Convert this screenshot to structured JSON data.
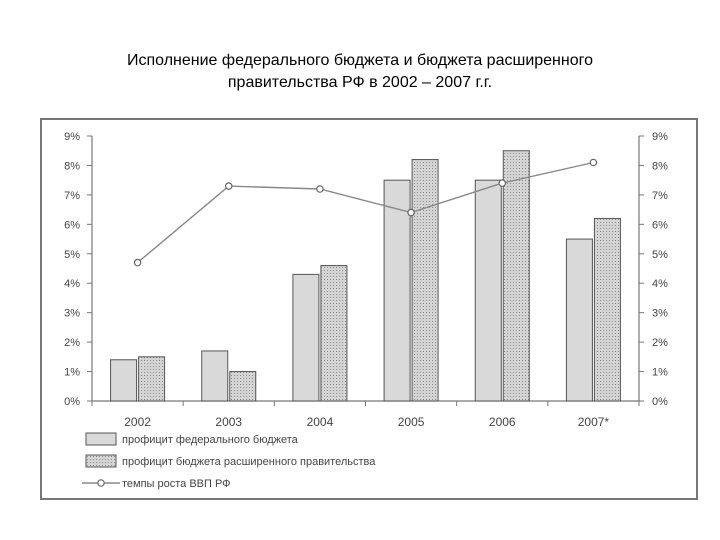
{
  "title": {
    "line1": "Исполнение федерального бюджета и бюджета расширенного",
    "line2": "правительства РФ в 2002 – 2007 г.г."
  },
  "chart_data": {
    "type": "bar",
    "categories": [
      "2002",
      "2003",
      "2004",
      "2005",
      "2006",
      "2007*"
    ],
    "series": [
      {
        "name": "профицит федерального бюджета",
        "type": "bar",
        "values": [
          1.4,
          1.7,
          4.3,
          7.5,
          7.5,
          5.5
        ]
      },
      {
        "name": "профицит бюджета расширенного правительства",
        "type": "bar",
        "values": [
          1.5,
          1.0,
          4.6,
          8.2,
          8.5,
          6.2
        ]
      },
      {
        "name": "темпы роста ВВП РФ",
        "type": "line",
        "values": [
          4.7,
          7.3,
          7.2,
          6.4,
          7.4,
          8.1
        ]
      }
    ],
    "yticks": [
      "0%",
      "1%",
      "2%",
      "3%",
      "4%",
      "5%",
      "6%",
      "7%",
      "8%",
      "9%"
    ],
    "ylim": [
      0,
      9
    ],
    "grid": false,
    "legend_position": "bottom-left",
    "colors": {
      "bar1": "#d9d9d9",
      "bar2": "#cfcfcf",
      "line": "#888888",
      "axis": "#777777"
    }
  }
}
